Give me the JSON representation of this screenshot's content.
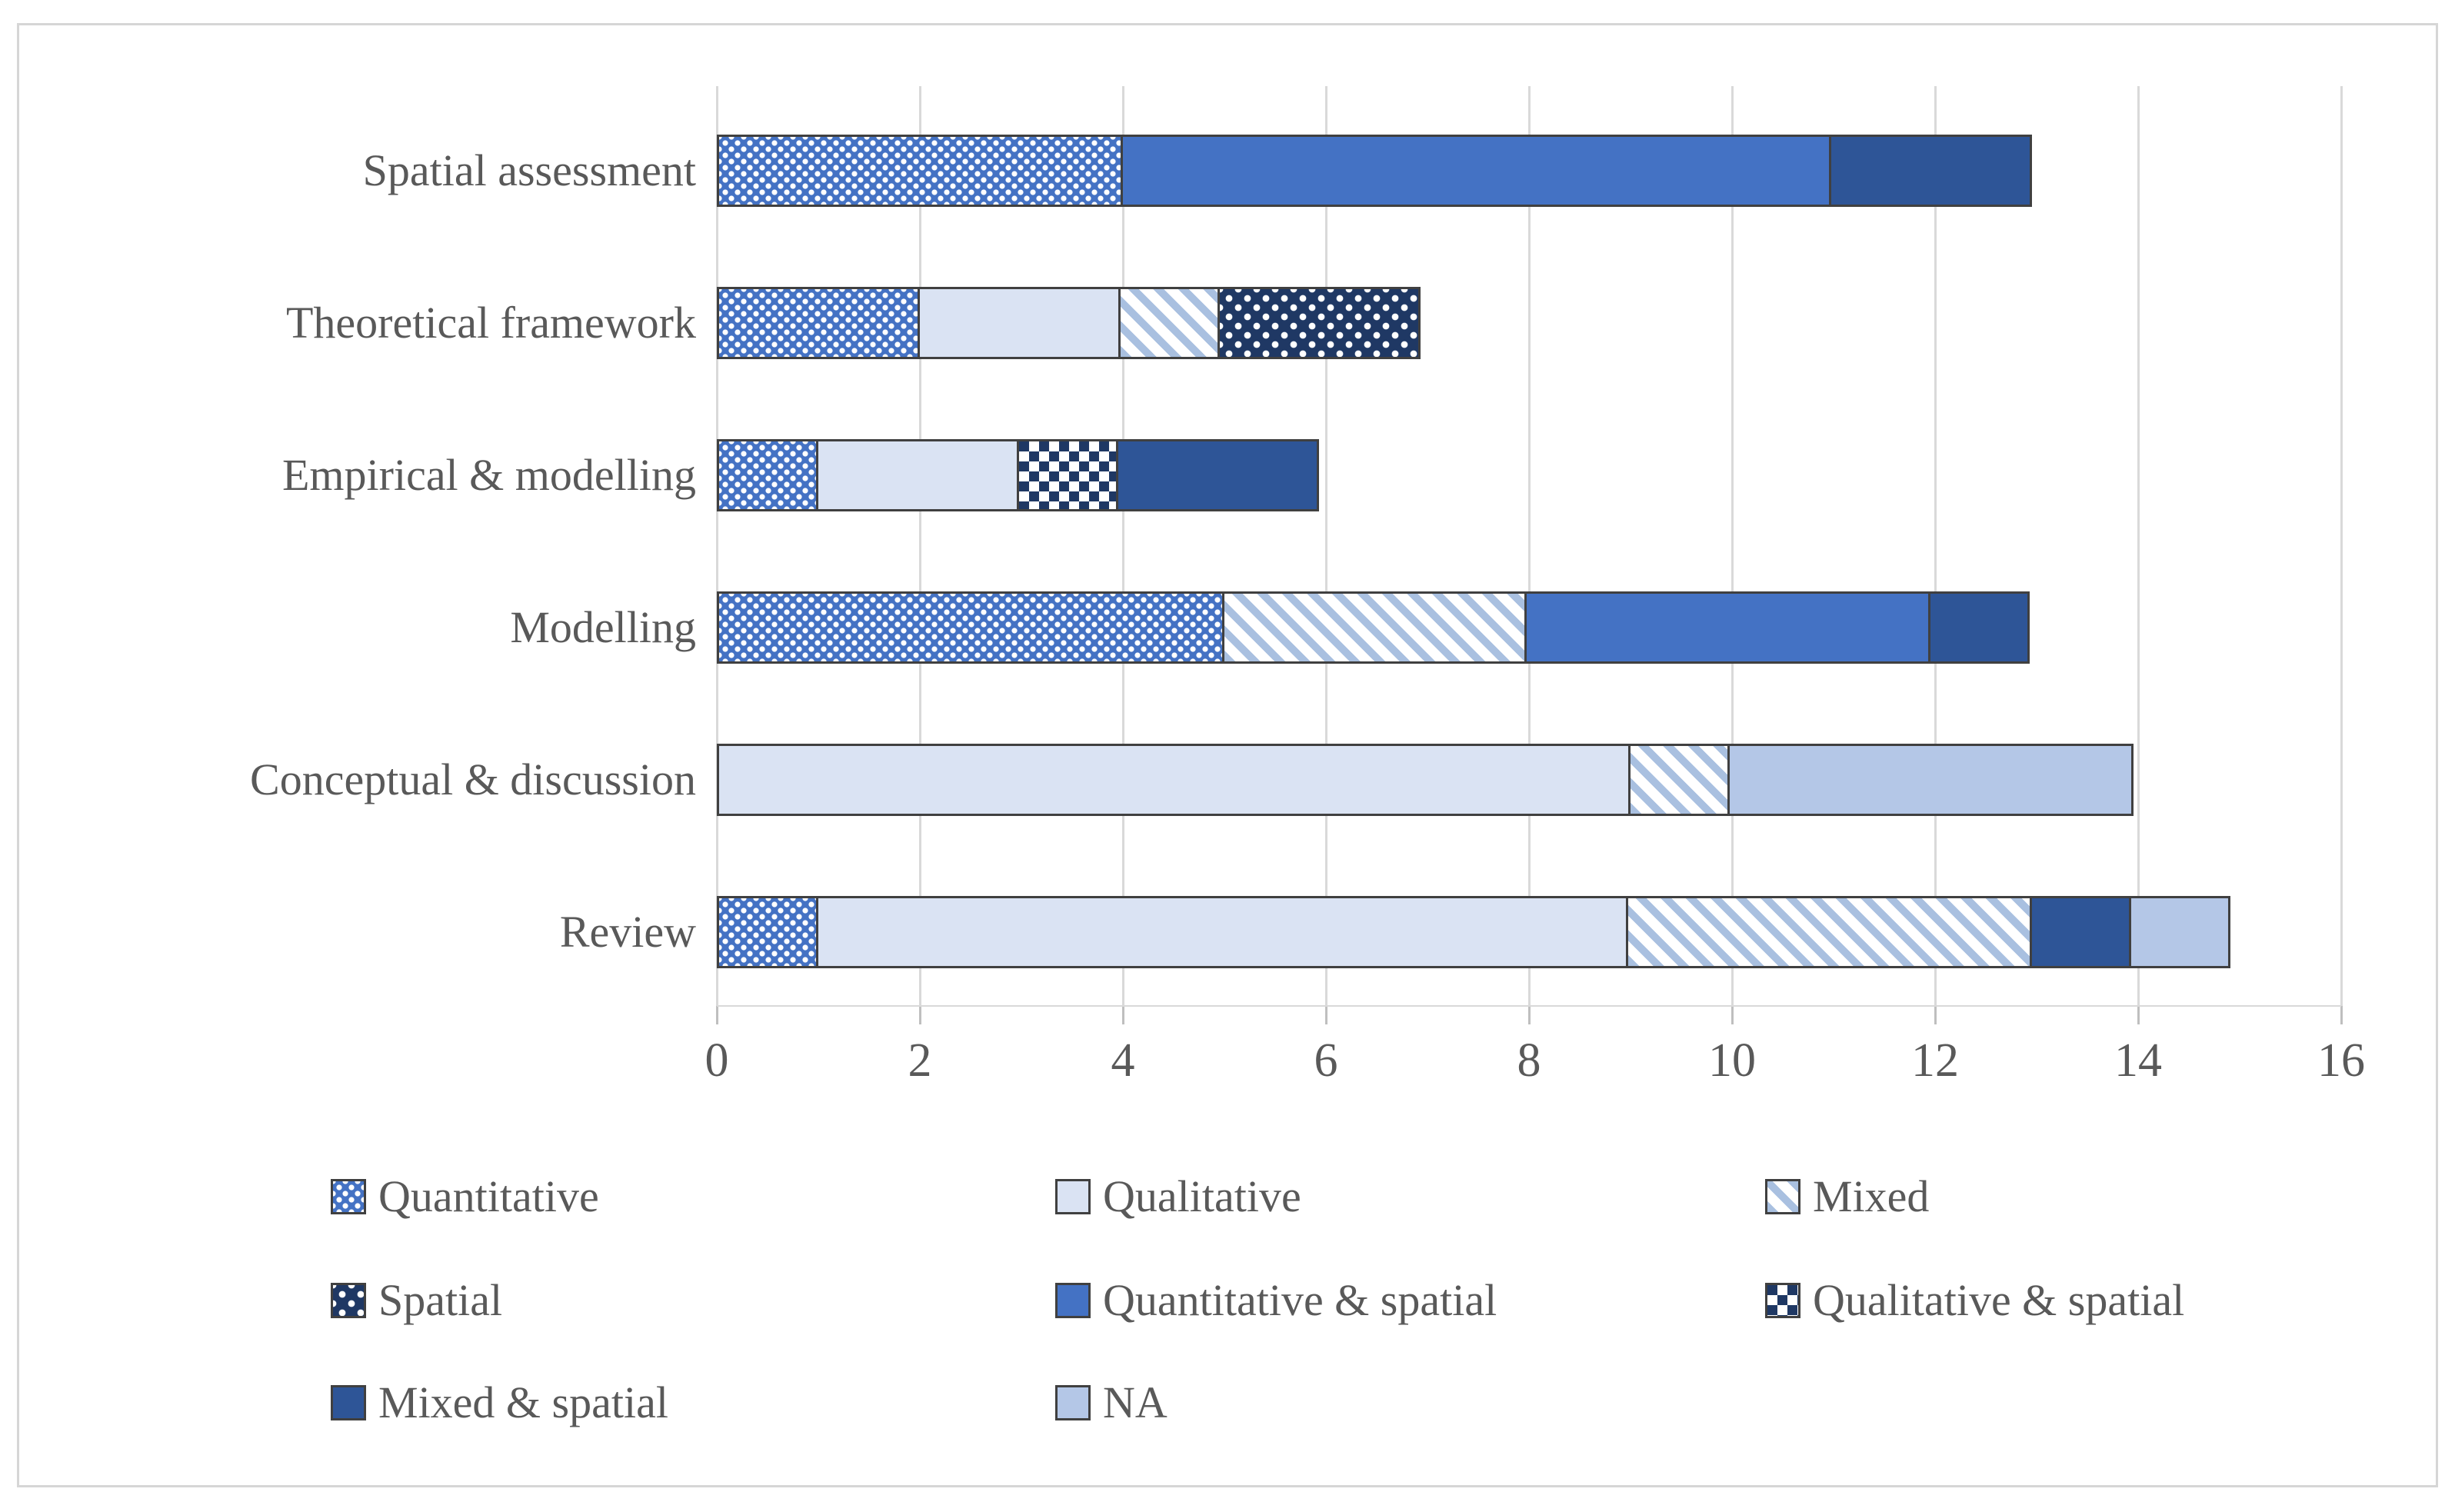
{
  "chart_data": {
    "type": "bar",
    "orientation": "horizontal",
    "stacked": true,
    "title": "",
    "xlabel": "",
    "ylabel": "",
    "xlim": [
      0,
      16
    ],
    "x_ticks": [
      0,
      2,
      4,
      6,
      8,
      10,
      12,
      14,
      16
    ],
    "grid": "vertical-major",
    "legend_position": "bottom",
    "categories": [
      "Spatial assessment",
      "Theoretical framework",
      "Empirical & modelling",
      "Modelling",
      "Conceptual & discussion",
      "Review"
    ],
    "series_names": [
      "Quantitative",
      "Qualitative",
      "Mixed",
      "Spatial",
      "Quantitative & spatial",
      "Qualitative & spatial",
      "Mixed & spatial",
      "NA"
    ],
    "bars": [
      {
        "category": "Spatial assessment",
        "total": 13,
        "segments": [
          {
            "series": "Quantitative",
            "value": 4
          },
          {
            "series": "Quantitative & spatial",
            "value": 7
          },
          {
            "series": "Mixed & spatial",
            "value": 2
          }
        ]
      },
      {
        "category": "Theoretical framework",
        "total": 7,
        "segments": [
          {
            "series": "Quantitative",
            "value": 2
          },
          {
            "series": "Qualitative",
            "value": 2
          },
          {
            "series": "Mixed",
            "value": 1
          },
          {
            "series": "Spatial",
            "value": 2
          }
        ]
      },
      {
        "category": "Empirical & modelling",
        "total": 6,
        "segments": [
          {
            "series": "Quantitative",
            "value": 1
          },
          {
            "series": "Qualitative",
            "value": 2
          },
          {
            "series": "Qualitative & spatial",
            "value": 1
          },
          {
            "series": "Mixed & spatial",
            "value": 2
          }
        ]
      },
      {
        "category": "Modelling",
        "total": 13,
        "segments": [
          {
            "series": "Quantitative",
            "value": 5
          },
          {
            "series": "Mixed",
            "value": 3
          },
          {
            "series": "Quantitative & spatial",
            "value": 4
          },
          {
            "series": "Mixed & spatial",
            "value": 1
          }
        ]
      },
      {
        "category": "Conceptual & discussion",
        "total": 14,
        "segments": [
          {
            "series": "Qualitative",
            "value": 9
          },
          {
            "series": "Mixed",
            "value": 1
          },
          {
            "series": "NA",
            "value": 4
          }
        ]
      },
      {
        "category": "Review",
        "total": 15,
        "segments": [
          {
            "series": "Quantitative",
            "value": 1
          },
          {
            "series": "Qualitative",
            "value": 8
          },
          {
            "series": "Mixed",
            "value": 4
          },
          {
            "series": "Mixed & spatial",
            "value": 1
          },
          {
            "series": "NA",
            "value": 1
          }
        ]
      }
    ],
    "legend": [
      {
        "label": "Quantitative",
        "pattern": "quantitative",
        "swatch": "white dots on medium blue"
      },
      {
        "label": "Qualitative",
        "pattern": "qualitative",
        "swatch": "solid light blue"
      },
      {
        "label": "Mixed",
        "pattern": "mixed",
        "swatch": "light-blue diagonal stripes on white"
      },
      {
        "label": "Spatial",
        "pattern": "spatial",
        "swatch": "white dots on dark navy"
      },
      {
        "label": "Quantitative & spatial",
        "pattern": "quant-spatial",
        "swatch": "solid medium blue"
      },
      {
        "label": "Qualitative & spatial",
        "pattern": "qual-spatial",
        "swatch": "navy-white checkerboard"
      },
      {
        "label": "Mixed & spatial",
        "pattern": "mixed-spatial",
        "swatch": "solid dark blue"
      },
      {
        "label": "NA",
        "pattern": "na",
        "swatch": "solid pale blue"
      }
    ],
    "colors": {
      "medium_blue": "#4472C4",
      "dark_blue": "#2E5597",
      "navy": "#1F3864",
      "light_blue": "#DAE3F3",
      "pale_blue": "#B4C7E7",
      "stripe_blue": "#A9C0E0",
      "gridline": "#D9D9D9",
      "axis_text": "#595959",
      "segment_border": "#404040"
    }
  }
}
